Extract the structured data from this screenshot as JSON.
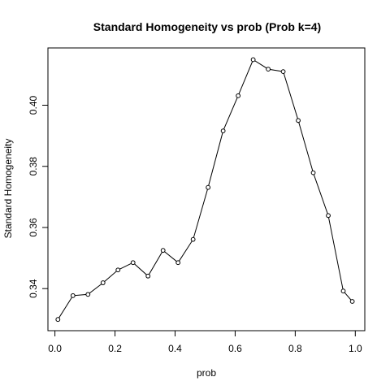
{
  "chart_data": {
    "type": "line",
    "title": "Standard Homogeneity vs prob (Prob k=4)",
    "xlabel": "prob",
    "ylabel": "Standard Homogeneity",
    "xlim": [
      0.0,
      1.0
    ],
    "ylim": [
      0.33,
      0.415
    ],
    "x_ticks": [
      0.0,
      0.2,
      0.4,
      0.6,
      0.8,
      1.0
    ],
    "x_tick_labels": [
      "0.0",
      "0.2",
      "0.4",
      "0.6",
      "0.8",
      "1.0"
    ],
    "y_ticks": [
      0.34,
      0.36,
      0.38,
      0.4
    ],
    "y_tick_labels": [
      "0.34",
      "0.36",
      "0.38",
      "0.40"
    ],
    "grid": false,
    "marker": "open-circle",
    "line_color": "#000000",
    "series": [
      {
        "x": [
          0.01,
          0.06,
          0.11,
          0.16,
          0.21,
          0.26,
          0.31,
          0.36,
          0.41,
          0.46,
          0.51,
          0.56,
          0.61,
          0.66,
          0.71,
          0.76,
          0.81,
          0.86,
          0.91,
          0.96,
          0.99
        ],
        "y": [
          0.3299,
          0.3377,
          0.3381,
          0.3419,
          0.3461,
          0.3485,
          0.3441,
          0.3525,
          0.3485,
          0.3561,
          0.3731,
          0.3916,
          0.4031,
          0.4149,
          0.4118,
          0.411,
          0.395,
          0.3779,
          0.3639,
          0.3392,
          0.3358
        ]
      }
    ]
  }
}
